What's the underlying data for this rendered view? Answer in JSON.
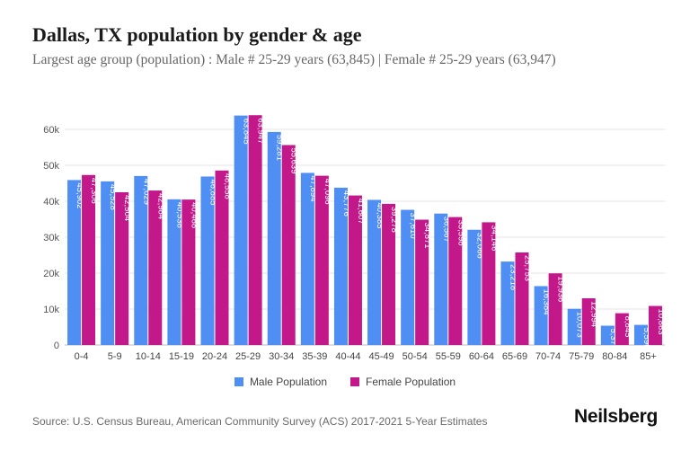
{
  "title": "Dallas, TX population by gender & age",
  "subtitle": "Largest age group (population) : Male # 25-29 years (63,845) | Female # 25-29 years (63,947)",
  "source": "Source: U.S. Census Bureau, American Community Survey (ACS) 2017-2021 5-Year Estimates",
  "brand": "Neilsberg",
  "colors": {
    "male": "#4f8ef2",
    "female": "#c2188a"
  },
  "chart_data": {
    "type": "bar",
    "categories": [
      "0-4",
      "5-9",
      "10-14",
      "15-19",
      "20-24",
      "25-29",
      "30-34",
      "35-39",
      "40-44",
      "45-49",
      "50-54",
      "55-59",
      "60-64",
      "65-69",
      "70-74",
      "75-79",
      "80-84",
      "85+"
    ],
    "series": [
      {
        "name": "Male Population",
        "values": [
          45902,
          45528,
          47029,
          40538,
          46885,
          63845,
          59281,
          47894,
          43776,
          40385,
          37610,
          36567,
          32066,
          23218,
          16384,
          10073,
          5370,
          5596
        ],
        "labels": [
          "45,902",
          "45,528",
          "47,029",
          "40,538",
          "46,885",
          "63,845",
          "59,281",
          "47,894",
          "43,776",
          "40,385",
          "37,610",
          "36,567",
          "32,066",
          "23,218",
          "16,384",
          "10,073",
          "5,370",
          "5,596"
        ]
      },
      {
        "name": "Female Population",
        "values": [
          47306,
          42504,
          42984,
          40468,
          48558,
          63947,
          55639,
          47096,
          41607,
          39278,
          34871,
          35598,
          34146,
          25753,
          19936,
          12994,
          8845,
          10863
        ],
        "labels": [
          "47,306",
          "42,504",
          "42,984",
          "40,468",
          "48,558",
          "63,947",
          "55,639",
          "47,096",
          "41,607",
          "39,278",
          "34,871",
          "35,598",
          "34,146",
          "25,753",
          "19,936",
          "12,994",
          "8,845",
          "10,863"
        ]
      }
    ],
    "yticks": [
      0,
      10000,
      20000,
      30000,
      40000,
      50000,
      60000
    ],
    "ytick_labels": [
      "0",
      "10k",
      "20k",
      "30k",
      "40k",
      "50k",
      "60k"
    ],
    "ylim": [
      0,
      64000
    ],
    "grid": true,
    "legend": "bottom-center"
  }
}
